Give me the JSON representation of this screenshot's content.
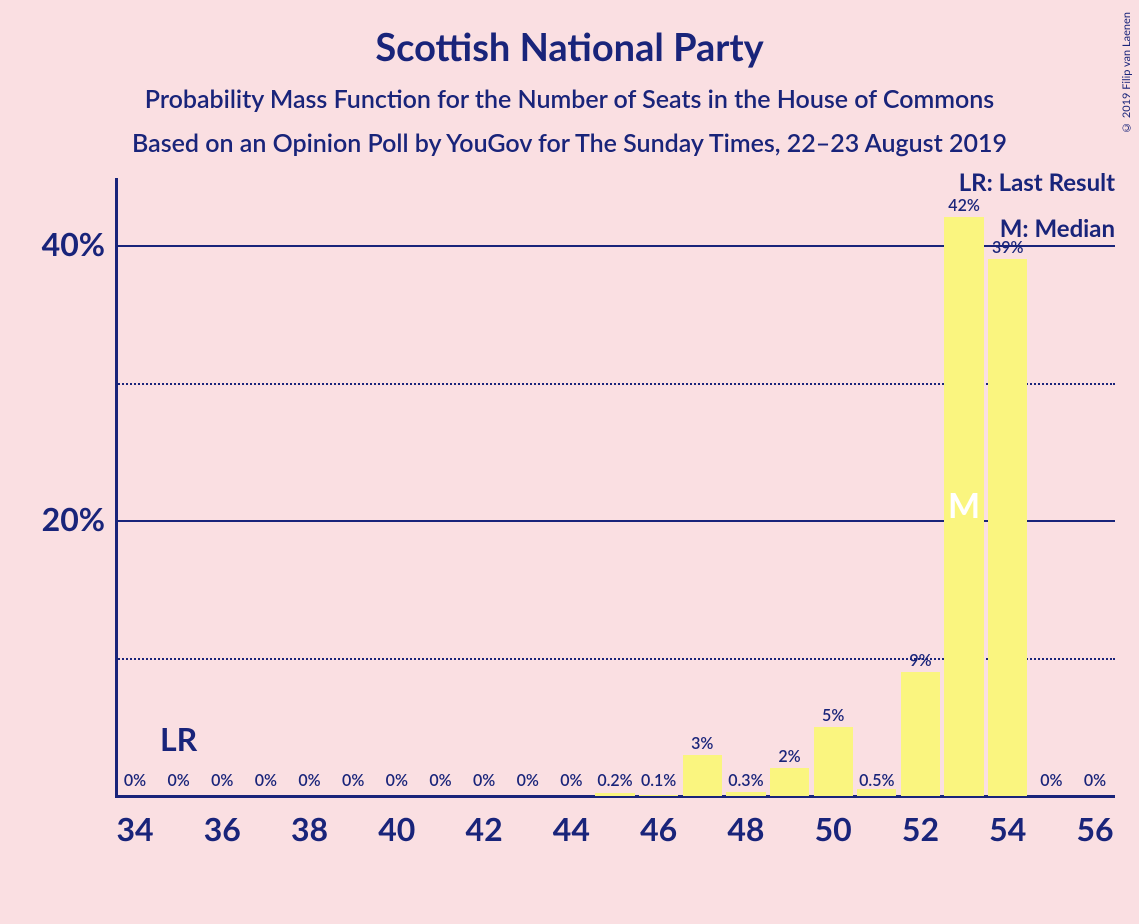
{
  "title": "Scottish National Party",
  "subtitle1": "Probability Mass Function for the Number of Seats in the House of Commons",
  "subtitle2": "Based on an Opinion Poll by YouGov for The Sunday Times, 22–23 August 2019",
  "copyright": "© 2019 Filip van Laenen",
  "chart": {
    "type": "bar",
    "background_color": "#fadfe2",
    "bar_color": "#faf57f",
    "text_color": "#19247a",
    "median_marker_color": "#ffffff",
    "xlim": [
      34,
      56
    ],
    "ylim": [
      0,
      45
    ],
    "y_ticks": [
      {
        "v": 20,
        "label": "20%",
        "style": "solid"
      },
      {
        "v": 40,
        "label": "40%",
        "style": "solid"
      },
      {
        "v": 10,
        "label": "",
        "style": "dotted"
      },
      {
        "v": 30,
        "label": "",
        "style": "dotted"
      }
    ],
    "x_ticks": [
      34,
      36,
      38,
      40,
      42,
      44,
      46,
      48,
      50,
      52,
      54,
      56
    ],
    "bars": [
      {
        "x": 34,
        "v": 0,
        "label": "0%",
        "pos": "bottom"
      },
      {
        "x": 35,
        "v": 0,
        "label": "0%",
        "pos": "bottom"
      },
      {
        "x": 36,
        "v": 0,
        "label": "0%",
        "pos": "bottom"
      },
      {
        "x": 37,
        "v": 0,
        "label": "0%",
        "pos": "bottom"
      },
      {
        "x": 38,
        "v": 0,
        "label": "0%",
        "pos": "bottom"
      },
      {
        "x": 39,
        "v": 0,
        "label": "0%",
        "pos": "bottom"
      },
      {
        "x": 40,
        "v": 0,
        "label": "0%",
        "pos": "bottom"
      },
      {
        "x": 41,
        "v": 0,
        "label": "0%",
        "pos": "bottom"
      },
      {
        "x": 42,
        "v": 0,
        "label": "0%",
        "pos": "bottom"
      },
      {
        "x": 43,
        "v": 0,
        "label": "0%",
        "pos": "bottom"
      },
      {
        "x": 44,
        "v": 0,
        "label": "0%",
        "pos": "bottom"
      },
      {
        "x": 45,
        "v": 0.2,
        "label": "0.2%",
        "pos": "bottom"
      },
      {
        "x": 46,
        "v": 0.1,
        "label": "0.1%",
        "pos": "bottom"
      },
      {
        "x": 47,
        "v": 3,
        "label": "3%",
        "pos": "top"
      },
      {
        "x": 48,
        "v": 0.3,
        "label": "0.3%",
        "pos": "bottom"
      },
      {
        "x": 49,
        "v": 2,
        "label": "2%",
        "pos": "top"
      },
      {
        "x": 50,
        "v": 5,
        "label": "5%",
        "pos": "top"
      },
      {
        "x": 51,
        "v": 0.5,
        "label": "0.5%",
        "pos": "bottom"
      },
      {
        "x": 52,
        "v": 9,
        "label": "9%",
        "pos": "top"
      },
      {
        "x": 53,
        "v": 42,
        "label": "42%",
        "pos": "top"
      },
      {
        "x": 54,
        "v": 39,
        "label": "39%",
        "pos": "top"
      },
      {
        "x": 55,
        "v": 0,
        "label": "0%",
        "pos": "bottom"
      },
      {
        "x": 56,
        "v": 0,
        "label": "0%",
        "pos": "bottom"
      }
    ],
    "lr_x": 35,
    "median_x": 53,
    "lr_label": "LR",
    "median_label": "M",
    "legend_lr": "LR: Last Result",
    "legend_m": "M: Median"
  }
}
